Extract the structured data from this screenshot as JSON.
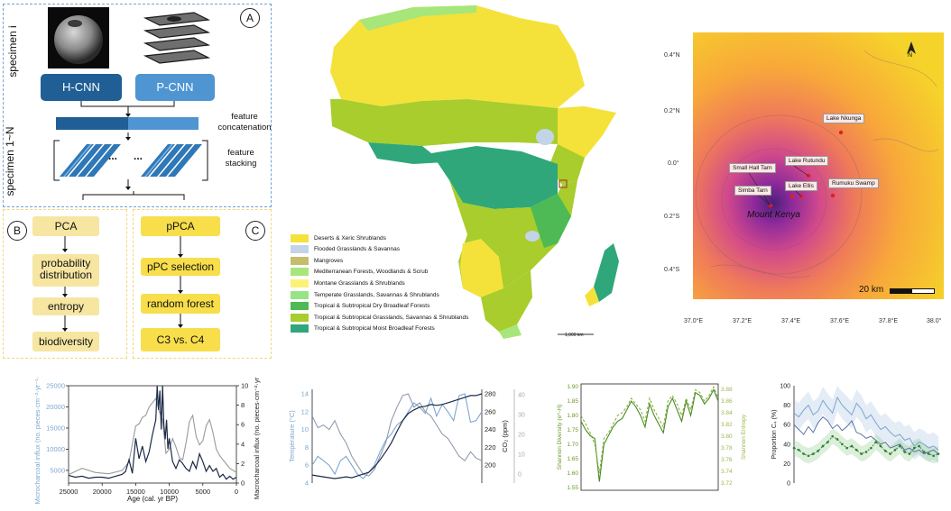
{
  "workflow": {
    "panel_a_letter": "A",
    "panel_b_letter": "B",
    "panel_c_letter": "C",
    "specimen_i": "specimen i",
    "specimen_1n": "specimen 1~N",
    "hcnn": "H-CNN",
    "pcnn": "P-CNN",
    "feature_concat": "feature concatenation",
    "feature_stacking": "feature stacking",
    "dots": "...",
    "left_steps": [
      "PCA",
      "probability distribution",
      "entropy",
      "biodiversity"
    ],
    "right_steps": [
      "pPCA",
      "pPC selection",
      "random forest",
      "C3 vs. C4"
    ],
    "colors": {
      "dark_blue": "#1f5f95",
      "light_blue": "#4f95d2",
      "pale_yellow": "#f6e6a2",
      "yellow": "#f8de4b"
    }
  },
  "africa_map": {
    "scale": "1,000 km",
    "legend": [
      {
        "label": "Deserts & Xeric Shrublands",
        "color": "#f4e23a"
      },
      {
        "label": "Flooded Grasslands & Savannas",
        "color": "#c3d4e8"
      },
      {
        "label": "Mangroves",
        "color": "#c5bd6a"
      },
      {
        "label": "Mediterranean Forests, Woodlands & Scrub",
        "color": "#a6e67a"
      },
      {
        "label": "Montane Grasslands & Shrublands",
        "color": "#fbf27a"
      },
      {
        "label": "Temperate Grasslands, Savannas & Shrublands",
        "color": "#97e484"
      },
      {
        "label": "Tropical & Subtropical Dry Broadleaf Forests",
        "color": "#4dba55"
      },
      {
        "label": "Tropical & Subtropical Grasslands, Savannas & Shrublands",
        "color": "#a8cd2c"
      },
      {
        "label": "Tropical & Subtropical Moist Broadleaf Forests",
        "color": "#2fa77a"
      }
    ]
  },
  "kenya_map": {
    "lat_ticks": [
      "0.4°N",
      "0.2°N",
      "0.0°",
      "0.2°S",
      "0.4°S"
    ],
    "lon_ticks": [
      "37.0°E",
      "37.2°E",
      "37.4°E",
      "37.6°E",
      "37.8°E",
      "38.0°"
    ],
    "sites": [
      "Lake Nkunga",
      "Lake Rutundu",
      "Small Hall Tarn",
      "Lake Ellis",
      "Rumuku Swamp",
      "Simba Tarn"
    ],
    "mountain": "Mount Kenya",
    "north": "N",
    "scalebar": "20 km"
  },
  "chart_data": [
    {
      "type": "line",
      "title": "",
      "xlabel": "Age (cal. yr BP)",
      "ylabel": "Microcharcoal influx (no. pieces·cm⁻²·yr⁻¹·10³)",
      "y2label": "Macrocharcoal influx (no. pieces·cm⁻²·yr⁻¹)",
      "x_ticks": [
        "25000",
        "20000",
        "15000",
        "10000",
        "5000",
        "0"
      ],
      "y_ticks": [
        "5000",
        "10000",
        "15000",
        "20000",
        "25000"
      ],
      "y2_ticks": [
        "0",
        "2",
        "4",
        "6",
        "8",
        "10"
      ],
      "xlim": [
        25000,
        0
      ],
      "ylim": [
        2000,
        25000
      ],
      "y2lim": [
        0,
        10
      ],
      "series": [
        {
          "axis": "left",
          "color": "#9a9a9a",
          "x": [
            25000,
            23000,
            21000,
            19000,
            17000,
            16000,
            15000,
            14500,
            14000,
            13500,
            13000,
            12500,
            12000,
            11500,
            11000,
            10500,
            10000,
            9500,
            9000,
            8500,
            8000,
            7500,
            7000,
            6500,
            6000,
            5500,
            5000,
            4500,
            4000,
            3500,
            3000,
            2500,
            2000,
            1500,
            1000,
            500,
            0
          ],
          "values": [
            4000,
            5500,
            4500,
            4200,
            5000,
            7000,
            15500,
            16000,
            17500,
            18000,
            20000,
            21000,
            22000,
            19000,
            17000,
            9000,
            10000,
            12500,
            10500,
            8000,
            7500,
            11500,
            16500,
            18000,
            13000,
            11000,
            12000,
            15500,
            17000,
            14000,
            10000,
            8500,
            7500,
            6500,
            5500,
            5000,
            4500
          ]
        },
        {
          "axis": "right",
          "color": "#1c2a47",
          "x": [
            25000,
            24000,
            23000,
            22000,
            21000,
            20000,
            19000,
            18000,
            17000,
            16500,
            16000,
            15500,
            15000,
            14500,
            14000,
            13500,
            13000,
            12500,
            12000,
            11800,
            11600,
            11400,
            11200,
            11000,
            10800,
            10600,
            10400,
            10200,
            10000,
            9500,
            9000,
            8500,
            8000,
            7500,
            7000,
            6500,
            6000,
            5500,
            5000,
            4500,
            4000,
            3500,
            3000,
            2500,
            2000,
            1500,
            1000,
            500,
            0
          ],
          "values": [
            0.8,
            0.6,
            0.7,
            0.5,
            0.6,
            0.6,
            0.5,
            0.7,
            0.9,
            1.2,
            2.4,
            1.0,
            4.6,
            2.5,
            3.8,
            2.2,
            3.2,
            5.0,
            6.5,
            10.0,
            7.5,
            9.5,
            5.5,
            10.0,
            6.0,
            4.5,
            6.5,
            3.5,
            4.6,
            2.2,
            1.5,
            2.4,
            2.0,
            1.5,
            1.2,
            2.2,
            1.5,
            3.0,
            2.2,
            1.2,
            1.8,
            1.2,
            1.5,
            0.6,
            0.9,
            0.4,
            0.7,
            0.4,
            0.6
          ]
        }
      ]
    },
    {
      "type": "line",
      "title": "",
      "ylabel": "Temperature (°C)",
      "y2label": "CO₂ (ppm)",
      "y_ticks": [
        "4",
        "6",
        "8",
        "10",
        "12",
        "14"
      ],
      "y2_ticks": [
        "200",
        "220",
        "240",
        "260",
        "280"
      ],
      "y3_ticks": [
        "0",
        "10",
        "20",
        "30",
        "40"
      ],
      "ylim": [
        4,
        14.5
      ],
      "y2lim": [
        180,
        285
      ],
      "series": [
        {
          "axis": "right",
          "color": "#1c2a47",
          "x": [
            0,
            1,
            2,
            3,
            4,
            5,
            6,
            7,
            8,
            9,
            10,
            11,
            12,
            13,
            14,
            15,
            16,
            17,
            18,
            19,
            20,
            21,
            22,
            23,
            24,
            25,
            26,
            27,
            28,
            29,
            30
          ],
          "values": [
            189,
            188,
            187,
            186,
            185,
            186,
            187,
            186,
            188,
            190,
            192,
            198,
            206,
            215,
            225,
            238,
            250,
            258,
            262,
            265,
            266,
            268,
            267,
            268,
            270,
            272,
            274,
            276,
            278,
            278,
            280
          ]
        },
        {
          "axis": "left",
          "color": "#7da7cf",
          "x": [
            0,
            1,
            2,
            3,
            4,
            5,
            6,
            7,
            8,
            9,
            10,
            11,
            12,
            13,
            14,
            15,
            16,
            17,
            18,
            19,
            20,
            21,
            22,
            23,
            24,
            25,
            26,
            27,
            28,
            29,
            30
          ],
          "values": [
            6.0,
            7.0,
            6.5,
            6.0,
            5.0,
            6.5,
            7.0,
            6.0,
            5.0,
            4.5,
            5.2,
            6.0,
            7.5,
            8.8,
            9.5,
            10.5,
            11.0,
            12.0,
            13.0,
            12.5,
            11.8,
            13.5,
            11.5,
            12.8,
            12.0,
            11.0,
            13.8,
            14.0,
            10.8,
            11.0,
            12.0
          ]
        },
        {
          "axis": "left",
          "color": "#8993a8",
          "x": [
            0,
            1,
            2,
            3,
            4,
            5,
            6,
            7,
            8,
            9,
            10,
            11,
            12,
            13,
            14,
            15,
            16,
            17,
            18,
            19,
            20,
            21,
            22,
            23,
            24,
            25,
            26,
            27,
            28,
            29,
            30
          ],
          "values": [
            11.5,
            10.2,
            10.5,
            10.0,
            11.0,
            9.5,
            8.5,
            7.0,
            6.0,
            5.0,
            4.8,
            5.5,
            7.0,
            8.5,
            11.0,
            12.5,
            13.8,
            14.0,
            12.5,
            13.0,
            12.0,
            11.5,
            10.5,
            9.5,
            9.0,
            8.0,
            7.0,
            6.5,
            7.5,
            6.8,
            6.5
          ]
        }
      ]
    },
    {
      "type": "line",
      "title": "",
      "ylabel": "Shannon Diversity (e^-H)",
      "y2label": "Shannon Entropy",
      "y_ticks": [
        "1.55",
        "1.60",
        "1.65",
        "1.70",
        "1.75",
        "1.80",
        "1.85",
        "1.90"
      ],
      "y2_ticks": [
        "3.72",
        "3.74",
        "3.76",
        "3.78",
        "3.80",
        "3.82",
        "3.84",
        "3.86",
        "3.88"
      ],
      "ylim": [
        1.54,
        1.91
      ],
      "series": [
        {
          "axis": "left",
          "color": "#4a8a1f",
          "x": [
            0,
            1,
            2,
            3,
            4,
            5,
            6,
            7,
            8,
            9,
            10,
            11,
            12,
            13,
            14,
            15,
            16,
            17,
            18,
            19,
            20,
            21,
            22,
            23,
            24,
            25,
            26,
            27,
            28,
            29,
            30
          ],
          "values": [
            1.78,
            1.75,
            1.73,
            1.72,
            1.57,
            1.7,
            1.73,
            1.76,
            1.78,
            1.79,
            1.82,
            1.85,
            1.83,
            1.8,
            1.76,
            1.84,
            1.8,
            1.77,
            1.74,
            1.83,
            1.86,
            1.82,
            1.78,
            1.85,
            1.8,
            1.88,
            1.87,
            1.84,
            1.86,
            1.89,
            1.85
          ]
        },
        {
          "axis": "left",
          "color": "#7cae3a",
          "x": [
            0,
            1,
            2,
            3,
            4,
            5,
            6,
            7,
            8,
            9,
            10,
            11,
            12,
            13,
            14,
            15,
            16,
            17,
            18,
            19,
            20,
            21,
            22,
            23,
            24,
            25,
            26,
            27,
            28,
            29,
            30
          ],
          "values": [
            1.8,
            1.77,
            1.74,
            1.7,
            1.6,
            1.72,
            1.74,
            1.77,
            1.8,
            1.81,
            1.83,
            1.86,
            1.84,
            1.82,
            1.78,
            1.86,
            1.82,
            1.79,
            1.76,
            1.85,
            1.87,
            1.84,
            1.8,
            1.86,
            1.82,
            1.89,
            1.88,
            1.85,
            1.87,
            1.9,
            1.86
          ]
        }
      ]
    },
    {
      "type": "line",
      "title": "",
      "ylabel": "Proportion C₄ (%)",
      "y_ticks": [
        "0",
        "20",
        "40",
        "60",
        "80",
        "100"
      ],
      "ylim": [
        0,
        100
      ],
      "series": [
        {
          "axis": "left",
          "color": "#7aa6d0",
          "x": [
            0,
            1,
            2,
            3,
            4,
            5,
            6,
            7,
            8,
            9,
            10,
            11,
            12,
            13,
            14,
            15,
            16,
            17,
            18,
            19,
            20,
            21,
            22,
            23,
            24,
            25,
            26,
            27,
            28,
            29,
            30
          ],
          "values": [
            72,
            68,
            75,
            80,
            70,
            74,
            85,
            78,
            72,
            88,
            80,
            75,
            70,
            82,
            76,
            66,
            70,
            62,
            55,
            58,
            52,
            48,
            50,
            44,
            46,
            38,
            42,
            40,
            36,
            38,
            34
          ]
        },
        {
          "axis": "left",
          "color": "#4e6b9a",
          "x": [
            0,
            1,
            2,
            3,
            4,
            5,
            6,
            7,
            8,
            9,
            10,
            11,
            12,
            13,
            14,
            15,
            16,
            17,
            18,
            19,
            20,
            21,
            22,
            23,
            24,
            25,
            26,
            27,
            28,
            29,
            30
          ],
          "values": [
            60,
            55,
            50,
            58,
            52,
            62,
            68,
            64,
            56,
            60,
            54,
            58,
            64,
            52,
            50,
            46,
            48,
            44,
            40,
            42,
            36,
            38,
            40,
            34,
            36,
            32,
            34,
            30,
            32,
            34,
            30
          ]
        },
        {
          "axis": "left",
          "color": "#3c8f3c",
          "x": [
            0,
            1,
            2,
            3,
            4,
            5,
            6,
            7,
            8,
            9,
            10,
            11,
            12,
            13,
            14,
            15,
            16,
            17,
            18,
            19,
            20,
            21,
            22,
            23,
            24,
            25,
            26,
            27,
            28,
            29,
            30
          ],
          "values": [
            36,
            34,
            30,
            28,
            30,
            33,
            38,
            42,
            48,
            45,
            40,
            36,
            38,
            34,
            30,
            32,
            36,
            42,
            38,
            33,
            30,
            34,
            38,
            32,
            30,
            36,
            38,
            32,
            30,
            28,
            30
          ]
        }
      ]
    }
  ]
}
